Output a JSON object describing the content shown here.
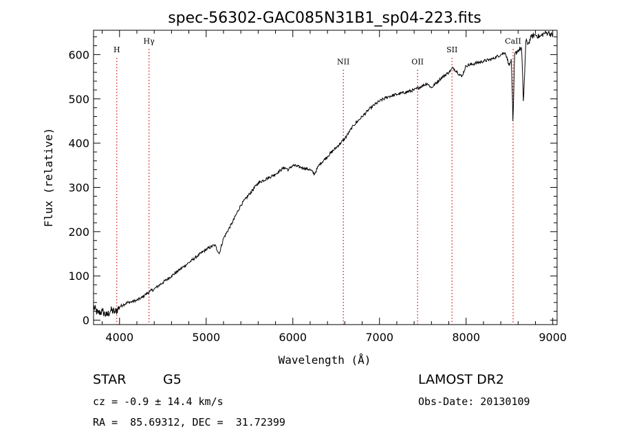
{
  "chart_data": {
    "type": "line",
    "title": "spec-56302-GAC085N31B1_sp04-223.fits",
    "xlabel": "Wavelength (Å)",
    "ylabel": "Flux (relative)",
    "xlim": [
      3700,
      9050
    ],
    "ylim": [
      -10,
      655
    ],
    "xticks": [
      4000,
      5000,
      6000,
      7000,
      8000,
      9000
    ],
    "yticks": [
      0,
      100,
      200,
      300,
      400,
      500,
      600
    ],
    "grid": false,
    "line_color": "#000000",
    "marker_color": "#cc0000",
    "lines": [
      {
        "label": "H",
        "x": 3968,
        "label_flux": 605
      },
      {
        "label": "Hγ",
        "x": 4340,
        "label_flux": 625
      },
      {
        "label": "NII",
        "x": 6583,
        "label_flux": 578
      },
      {
        "label": "OII",
        "x": 7440,
        "label_flux": 578
      },
      {
        "label": "SII",
        "x": 7837,
        "label_flux": 605
      },
      {
        "label": "CaII",
        "x": 8542,
        "label_flux": 625
      }
    ],
    "series": [
      {
        "x": [
          3700,
          3750,
          3800,
          3850,
          3900,
          3950,
          4000,
          4050,
          4100,
          4150,
          4200,
          4250,
          4300,
          4350,
          4400,
          4450,
          4500,
          4600,
          4700,
          4800,
          4900,
          5000,
          5100,
          5150,
          5200,
          5300,
          5400,
          5500,
          5600,
          5700,
          5800,
          5900,
          5950,
          6000,
          6100,
          6200,
          6250,
          6300,
          6400,
          6500,
          6550,
          6600,
          6650,
          6700,
          6800,
          6900,
          7000,
          7100,
          7200,
          7300,
          7400,
          7500,
          7550,
          7600,
          7700,
          7800,
          7850,
          7900,
          7950,
          8000,
          8100,
          8200,
          8300,
          8400,
          8450,
          8500,
          8520,
          8542,
          8560,
          8600,
          8640,
          8662,
          8690,
          8720,
          8750,
          8800,
          8850,
          8900,
          8950,
          9000
        ],
        "values": [
          30,
          15,
          20,
          10,
          22,
          18,
          30,
          36,
          40,
          42,
          45,
          50,
          58,
          65,
          70,
          78,
          85,
          100,
          115,
          130,
          145,
          160,
          170,
          150,
          185,
          220,
          260,
          285,
          310,
          320,
          330,
          345,
          340,
          350,
          345,
          340,
          330,
          350,
          370,
          390,
          400,
          410,
          425,
          440,
          460,
          480,
          495,
          505,
          510,
          515,
          520,
          530,
          535,
          525,
          545,
          560,
          570,
          560,
          550,
          575,
          580,
          585,
          590,
          600,
          605,
          575,
          590,
          450,
          600,
          610,
          615,
          495,
          630,
          625,
          640,
          645,
          640,
          648,
          650,
          642
        ]
      }
    ]
  },
  "footer": {
    "object_class": "STAR",
    "subclass": "G5",
    "survey": "LAMOST DR2",
    "cz": "cz = -0.9 ± 14.4 km/s",
    "obs_date": "Obs-Date: 20130109",
    "radec": "RA =  85.69312, DEC =  31.72399"
  }
}
